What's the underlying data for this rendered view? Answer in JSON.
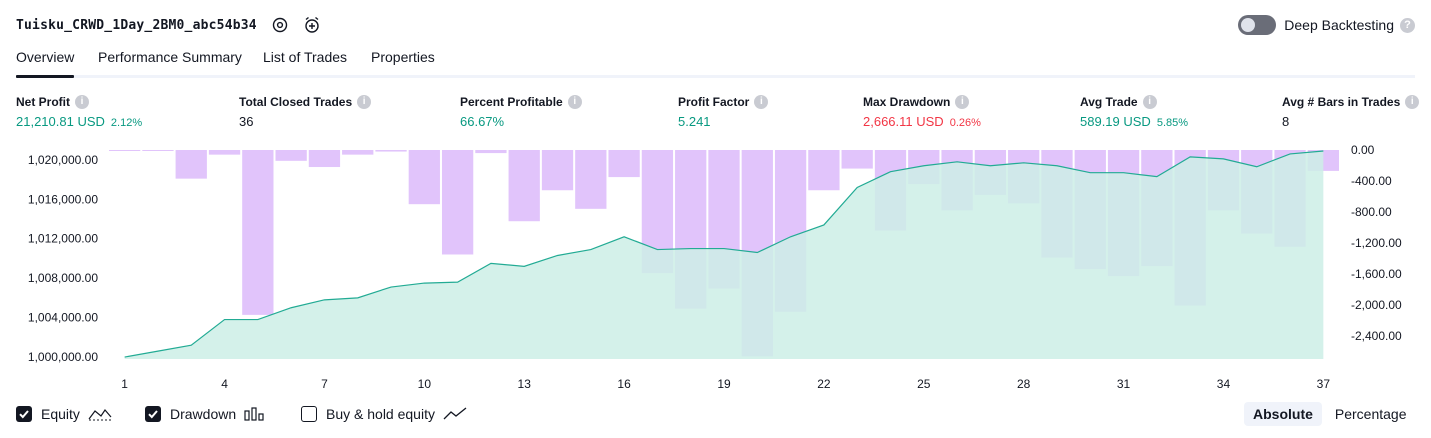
{
  "header": {
    "strategy_name": "Tuisku_CRWD_1Day_2BM0_abc54b34",
    "settings_icon": "gear-icon",
    "alert_icon": "alarm-add-icon",
    "deep_backtesting_label": "Deep Backtesting",
    "deep_backtesting_enabled": false,
    "help_icon": "question-mark-icon"
  },
  "tabs": [
    {
      "label": "Overview",
      "active": true
    },
    {
      "label": "Performance Summary",
      "active": false
    },
    {
      "label": "List of Trades",
      "active": false
    },
    {
      "label": "Properties",
      "active": false
    }
  ],
  "metrics": [
    {
      "label": "Net Profit",
      "value": "21,210.81 USD",
      "percent": "2.12%",
      "tone": "pos"
    },
    {
      "label": "Total Closed Trades",
      "value": "36",
      "percent": "",
      "tone": "plain"
    },
    {
      "label": "Percent Profitable",
      "value": "66.67%",
      "percent": "",
      "tone": "pos"
    },
    {
      "label": "Profit Factor",
      "value": "5.241",
      "percent": "",
      "tone": "pos"
    },
    {
      "label": "Max Drawdown",
      "value": "2,666.11 USD",
      "percent": "0.26%",
      "tone": "neg"
    },
    {
      "label": "Avg Trade",
      "value": "589.19 USD",
      "percent": "5.85%",
      "tone": "pos"
    },
    {
      "label": "Avg # Bars in Trades",
      "value": "8",
      "percent": "",
      "tone": "plain"
    }
  ],
  "colors": {
    "equity_line": "#22ab94",
    "equity_fill": "#cdeee6",
    "drawdown_bar": "#e1c4fb",
    "overlap_bar": "#b3bfe9",
    "positive": "#089981",
    "negative": "#f23645",
    "axis_text": "#131722"
  },
  "chart_data": {
    "type": "line",
    "x_ticks": [
      "1",
      "4",
      "7",
      "10",
      "13",
      "16",
      "19",
      "22",
      "25",
      "28",
      "31",
      "34",
      "37"
    ],
    "left_axis_ticks": [
      "1,020,000.00",
      "1,016,000.00",
      "1,012,000.00",
      "1,008,000.00",
      "1,004,000.00",
      "1,000,000.00"
    ],
    "right_axis_ticks": [
      "0.00",
      "-400.00",
      "-800.00",
      "-1,200.00",
      "-1,600.00",
      "-2,000.00",
      "-2,400.00"
    ],
    "left_ylim": [
      999800,
      1021000
    ],
    "right_ylim": [
      -2700,
      0
    ],
    "series": [
      {
        "name": "Equity",
        "kind": "line",
        "axis": "left",
        "x": [
          1,
          2,
          3,
          4,
          5,
          6,
          7,
          8,
          9,
          10,
          11,
          12,
          13,
          14,
          15,
          16,
          17,
          18,
          19,
          20,
          21,
          22,
          23,
          24,
          25,
          26,
          27,
          28,
          29,
          30,
          31,
          32,
          33,
          34,
          35,
          36,
          37
        ],
        "values": [
          1000000,
          1000600,
          1001200,
          1003800,
          1003800,
          1005000,
          1005800,
          1006000,
          1007100,
          1007500,
          1007600,
          1009500,
          1009200,
          1010300,
          1010900,
          1012200,
          1010900,
          1011000,
          1011000,
          1010600,
          1012200,
          1013400,
          1017200,
          1018800,
          1019400,
          1019800,
          1019400,
          1019700,
          1019400,
          1018700,
          1018700,
          1018300,
          1020300,
          1020100,
          1019300,
          1020600,
          1020900
        ]
      },
      {
        "name": "Drawdown",
        "kind": "bar",
        "axis": "right",
        "x": [
          1,
          2,
          3,
          4,
          5,
          6,
          7,
          8,
          9,
          10,
          11,
          12,
          13,
          14,
          15,
          16,
          17,
          18,
          19,
          20,
          21,
          22,
          23,
          24,
          25,
          26,
          27,
          28,
          29,
          30,
          31,
          32,
          33,
          34,
          35,
          36,
          37
        ],
        "values": [
          -5,
          -10,
          -370,
          -60,
          -2130,
          -140,
          -220,
          -60,
          -20,
          -700,
          -1350,
          -40,
          -920,
          -520,
          -760,
          -350,
          -1590,
          -2050,
          -1790,
          -2666,
          -2090,
          -520,
          -240,
          -1040,
          -440,
          -780,
          -580,
          -690,
          -1390,
          -1540,
          -1630,
          -1500,
          -2010,
          -780,
          -1080,
          -1250,
          -270
        ]
      }
    ]
  },
  "legend": [
    {
      "label": "Equity",
      "checked": true,
      "icon": "equity-line-icon"
    },
    {
      "label": "Drawdown",
      "checked": true,
      "icon": "drawdown-bars-icon"
    },
    {
      "label": "Buy & hold equity",
      "checked": false,
      "icon": "buy-hold-line-icon"
    }
  ],
  "scale_toggle": [
    {
      "label": "Absolute",
      "active": true
    },
    {
      "label": "Percentage",
      "active": false
    }
  ]
}
